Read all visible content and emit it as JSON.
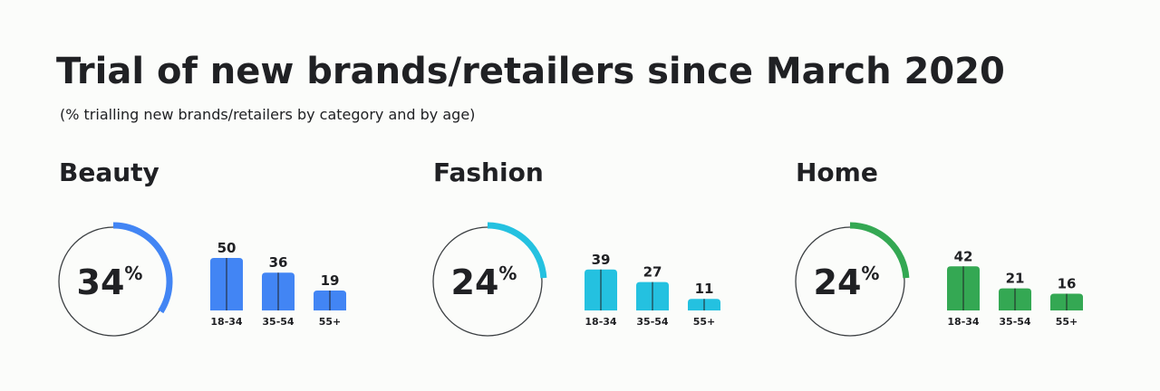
{
  "title": "Trial of new brands/retailers since March 2020",
  "subtitle": "(% trialling new brands/retailers by category and by age)",
  "chart_data": [
    {
      "type": "bar",
      "title": "Beauty",
      "color": "#4285f4",
      "ring": {
        "value": 34,
        "unit": "%",
        "lim": [
          0,
          100
        ]
      },
      "categories": [
        "18-34",
        "35-54",
        "55+"
      ],
      "values": [
        50,
        36,
        19
      ],
      "ylim": [
        0,
        50
      ]
    },
    {
      "type": "bar",
      "title": "Fashion",
      "color": "#24c1e0",
      "ring": {
        "value": 24,
        "unit": "%",
        "lim": [
          0,
          100
        ]
      },
      "categories": [
        "18-34",
        "35-54",
        "55+"
      ],
      "values": [
        39,
        27,
        11
      ],
      "ylim": [
        0,
        50
      ]
    },
    {
      "type": "bar",
      "title": "Home",
      "color": "#34a853",
      "ring": {
        "value": 24,
        "unit": "%",
        "lim": [
          0,
          100
        ]
      },
      "categories": [
        "18-34",
        "35-54",
        "55+"
      ],
      "values": [
        42,
        21,
        16
      ],
      "ylim": [
        0,
        50
      ]
    }
  ]
}
